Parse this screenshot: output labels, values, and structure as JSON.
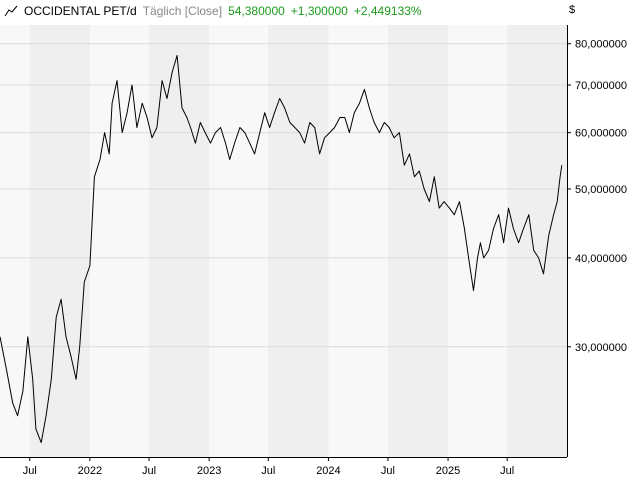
{
  "header": {
    "symbol": "OCCIDENTAL PET/d",
    "mode": "Täglich [Close]",
    "last": "54,380000",
    "change": "+1,300000",
    "change_pct": "+2,449133%"
  },
  "currency": "$",
  "colors": {
    "line": "#000000",
    "positive": "#1a9a1a",
    "band": "#efefef",
    "grid": "#dcdcdc"
  },
  "chart_data": {
    "type": "line",
    "scale": "log",
    "ylim": [
      21,
      85
    ],
    "xlim": [
      "2021-04-01",
      "2025-12-31"
    ],
    "y_ticks": [
      {
        "v": 80,
        "label": "80,000000"
      },
      {
        "v": 70,
        "label": "70,000000"
      },
      {
        "v": 60,
        "label": "60,000000"
      },
      {
        "v": 50,
        "label": "50,000000"
      },
      {
        "v": 40,
        "label": "40,000000"
      },
      {
        "v": 30,
        "label": "30,000000"
      }
    ],
    "x_ticks": [
      {
        "date": "2021-07-01",
        "label": "Jul"
      },
      {
        "date": "2022-01-01",
        "label": "2022"
      },
      {
        "date": "2022-07-01",
        "label": "Jul"
      },
      {
        "date": "2023-01-01",
        "label": "2023"
      },
      {
        "date": "2023-07-01",
        "label": "Jul"
      },
      {
        "date": "2024-01-01",
        "label": "2024"
      },
      {
        "date": "2024-07-01",
        "label": "Jul"
      },
      {
        "date": "2025-01-01",
        "label": "2025"
      },
      {
        "date": "2025-07-01",
        "label": "Jul"
      }
    ],
    "series": [
      {
        "x": [
          "2021-04-01",
          "2021-04-20",
          "2021-05-10",
          "2021-05-25",
          "2021-06-10",
          "2021-06-25",
          "2021-07-10",
          "2021-07-20",
          "2021-08-05",
          "2021-08-20",
          "2021-09-05",
          "2021-09-20",
          "2021-10-05",
          "2021-10-20",
          "2021-11-05",
          "2021-11-20",
          "2021-12-01",
          "2021-12-15",
          "2022-01-01",
          "2022-01-15",
          "2022-02-01",
          "2022-02-15",
          "2022-03-01",
          "2022-03-10",
          "2022-03-25",
          "2022-04-10",
          "2022-04-25",
          "2022-05-10",
          "2022-05-25",
          "2022-06-10",
          "2022-06-25",
          "2022-07-10",
          "2022-07-25",
          "2022-08-10",
          "2022-08-25",
          "2022-09-10",
          "2022-09-25",
          "2022-10-10",
          "2022-10-25",
          "2022-11-05",
          "2022-11-20",
          "2022-12-05",
          "2022-12-20",
          "2023-01-05",
          "2023-01-20",
          "2023-02-05",
          "2023-02-20",
          "2023-03-05",
          "2023-03-20",
          "2023-04-05",
          "2023-04-20",
          "2023-05-05",
          "2023-05-20",
          "2023-06-05",
          "2023-06-20",
          "2023-07-05",
          "2023-07-20",
          "2023-08-05",
          "2023-08-20",
          "2023-09-05",
          "2023-09-20",
          "2023-10-05",
          "2023-10-20",
          "2023-11-05",
          "2023-11-20",
          "2023-12-05",
          "2023-12-20",
          "2024-01-05",
          "2024-01-20",
          "2024-02-05",
          "2024-02-20",
          "2024-03-05",
          "2024-03-20",
          "2024-04-05",
          "2024-04-20",
          "2024-05-05",
          "2024-05-20",
          "2024-06-05",
          "2024-06-20",
          "2024-07-05",
          "2024-07-20",
          "2024-08-05",
          "2024-08-20",
          "2024-09-05",
          "2024-09-20",
          "2024-10-05",
          "2024-10-20",
          "2024-11-05",
          "2024-11-20",
          "2024-12-05",
          "2024-12-20",
          "2025-01-05",
          "2025-01-20",
          "2025-02-05",
          "2025-02-20",
          "2025-03-05",
          "2025-03-20",
          "2025-04-01",
          "2025-04-10",
          "2025-04-20",
          "2025-05-05",
          "2025-05-20",
          "2025-06-05",
          "2025-06-20",
          "2025-07-05",
          "2025-07-20",
          "2025-08-05",
          "2025-08-20",
          "2025-09-05",
          "2025-09-20",
          "2025-10-05",
          "2025-10-20",
          "2025-11-05",
          "2025-11-20",
          "2025-12-01",
          "2025-12-10",
          "2025-12-15"
        ],
        "values": [
          31,
          28,
          25,
          24,
          26,
          31,
          27,
          23,
          22,
          24,
          27,
          33,
          35,
          31,
          29,
          27,
          30,
          37,
          39,
          52,
          55,
          60,
          56,
          66,
          71,
          60,
          64,
          70,
          61,
          66,
          63,
          59,
          61,
          71,
          67,
          73,
          77,
          65,
          63,
          61,
          58,
          62,
          60,
          58,
          60,
          61,
          58,
          55,
          58,
          61,
          60,
          58,
          56,
          60,
          64,
          61,
          64,
          67,
          65,
          62,
          61,
          60,
          58,
          62,
          61,
          56,
          59,
          60,
          61,
          63,
          63,
          60,
          64,
          66,
          69,
          65,
          62,
          60,
          62,
          61,
          59,
          60,
          54,
          56,
          52,
          53,
          50,
          48,
          52,
          47,
          48,
          47,
          46,
          48,
          44,
          40,
          36,
          40,
          42,
          40,
          41,
          44,
          46,
          42,
          47,
          44,
          42,
          44,
          46,
          41,
          40,
          38,
          43,
          46,
          48,
          52,
          54
        ]
      }
    ]
  }
}
